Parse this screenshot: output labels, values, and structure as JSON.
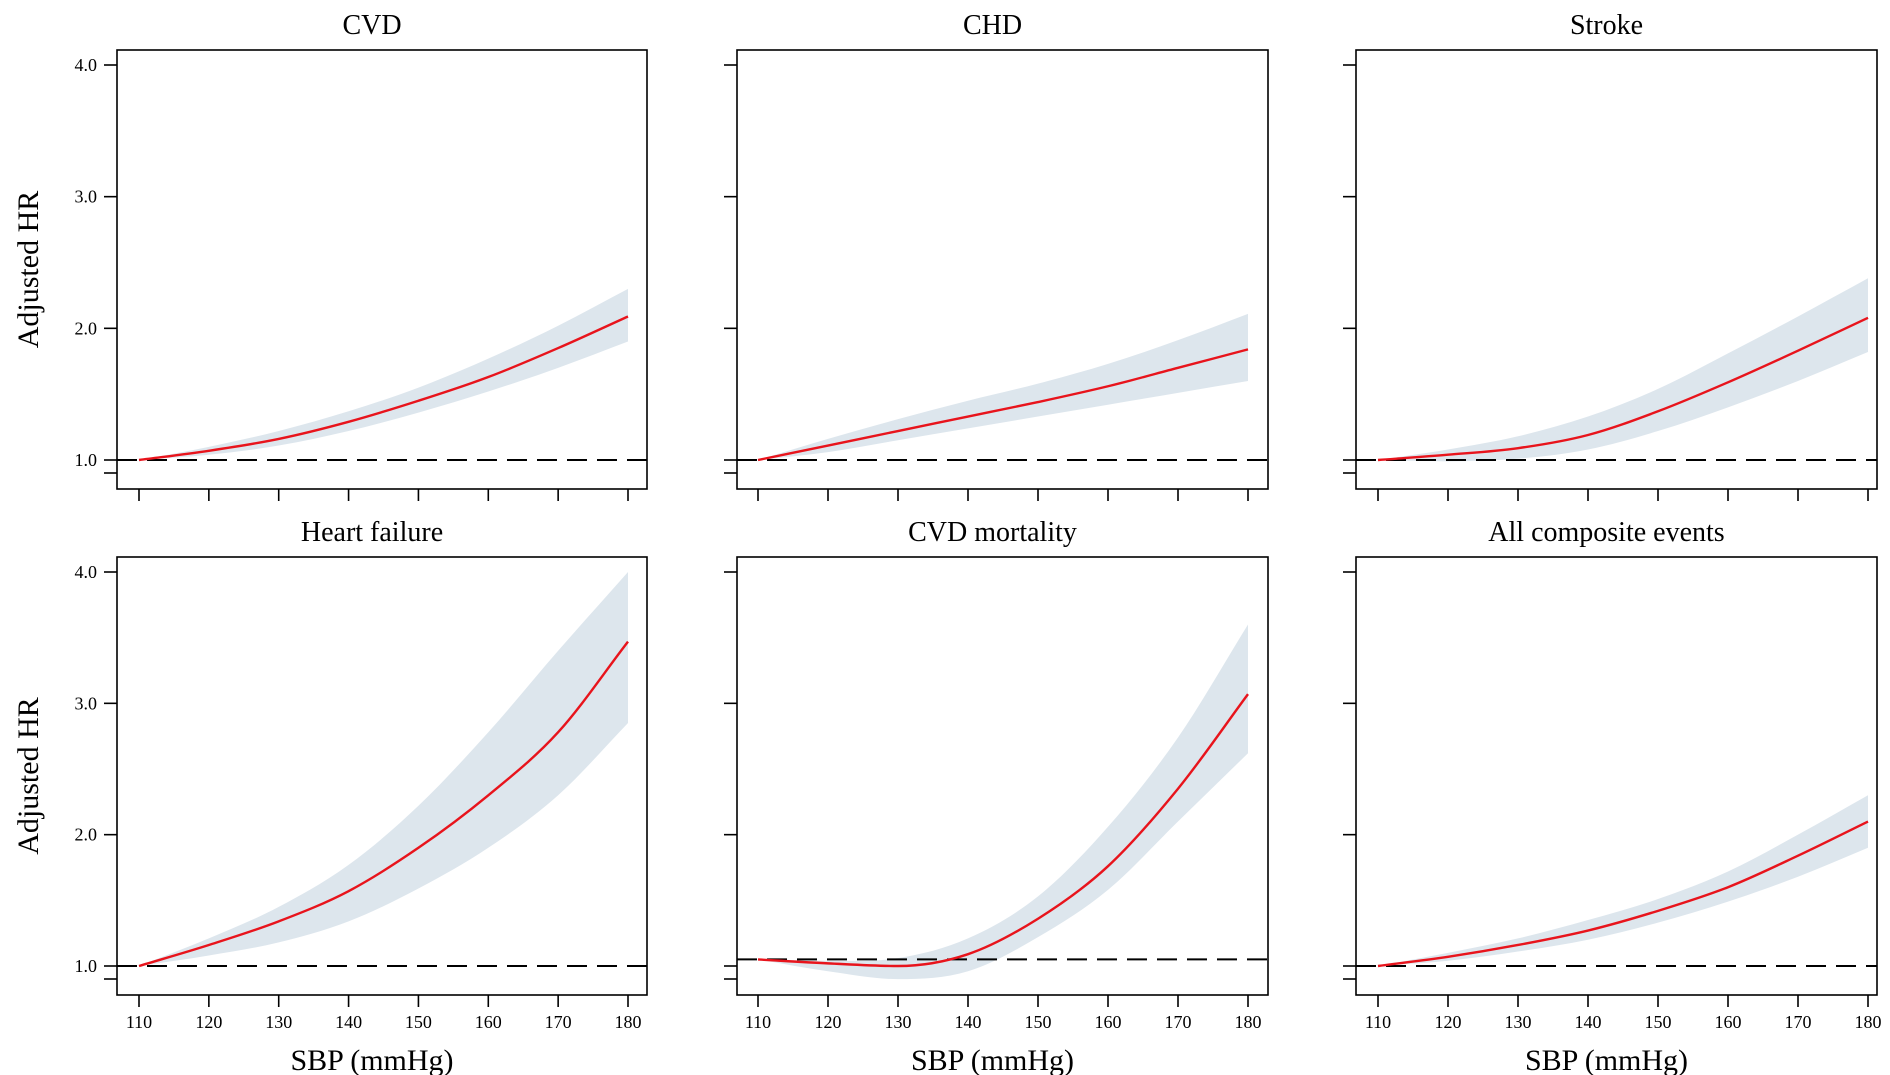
{
  "colors": {
    "curve": "#e8141c",
    "band": "#dde6ed",
    "reference": "#000000"
  },
  "chart_data": [
    {
      "type": "line",
      "title": "CVD",
      "xlabel": "",
      "ylabel": "Adjusted HR",
      "xlim": [
        110,
        180
      ],
      "ylim": [
        1,
        4
      ],
      "reference_y": 1.0,
      "x_ticks": [
        "110",
        "120",
        "130",
        "140",
        "150",
        "160",
        "170",
        "180"
      ],
      "x_tick_labels_shown": false,
      "y_ticks": [
        "1.0",
        "2.0",
        "3.0",
        "4.0"
      ],
      "y_tick_labels_shown": true,
      "x": [
        110,
        120,
        130,
        140,
        150,
        160,
        170,
        180
      ],
      "series": [
        {
          "values": [
            1.0,
            1.07,
            1.16,
            1.29,
            1.45,
            1.63,
            1.85,
            2.09
          ]
        }
      ],
      "ci_lower": [
        1.0,
        1.04,
        1.11,
        1.22,
        1.36,
        1.52,
        1.7,
        1.9
      ],
      "ci_upper": [
        1.0,
        1.1,
        1.22,
        1.37,
        1.55,
        1.77,
        2.02,
        2.3
      ]
    },
    {
      "type": "line",
      "title": "CHD",
      "xlabel": "",
      "ylabel": "",
      "xlim": [
        110,
        180
      ],
      "ylim": [
        1,
        4
      ],
      "reference_y": 1.0,
      "x_ticks": [
        "110",
        "120",
        "130",
        "140",
        "150",
        "160",
        "170",
        "180"
      ],
      "x_tick_labels_shown": false,
      "y_ticks": [
        "1.0",
        "2.0",
        "3.0",
        "4.0"
      ],
      "y_tick_labels_shown": false,
      "x": [
        110,
        120,
        130,
        140,
        150,
        160,
        170,
        180
      ],
      "series": [
        {
          "values": [
            1.0,
            1.11,
            1.22,
            1.33,
            1.44,
            1.56,
            1.7,
            1.84
          ]
        }
      ],
      "ci_lower": [
        1.0,
        1.06,
        1.15,
        1.24,
        1.33,
        1.42,
        1.51,
        1.6
      ],
      "ci_upper": [
        1.0,
        1.16,
        1.31,
        1.45,
        1.58,
        1.73,
        1.91,
        2.11
      ]
    },
    {
      "type": "line",
      "title": "Stroke",
      "xlabel": "",
      "ylabel": "",
      "xlim": [
        110,
        180
      ],
      "ylim": [
        1,
        4
      ],
      "reference_y": 1.0,
      "x_ticks": [
        "110",
        "120",
        "130",
        "140",
        "150",
        "160",
        "170",
        "180"
      ],
      "x_tick_labels_shown": false,
      "y_ticks": [
        "1.0",
        "2.0",
        "3.0",
        "4.0"
      ],
      "y_tick_labels_shown": false,
      "x": [
        110,
        120,
        130,
        140,
        150,
        160,
        170,
        180
      ],
      "series": [
        {
          "values": [
            1.0,
            1.04,
            1.09,
            1.19,
            1.37,
            1.59,
            1.83,
            2.08
          ]
        }
      ],
      "ci_lower": [
        1.0,
        0.99,
        1.01,
        1.08,
        1.22,
        1.4,
        1.6,
        1.82
      ],
      "ci_upper": [
        1.0,
        1.08,
        1.18,
        1.33,
        1.54,
        1.81,
        2.09,
        2.38
      ]
    },
    {
      "type": "line",
      "title": "Heart failure",
      "xlabel": "SBP (mmHg)",
      "ylabel": "Adjusted HR",
      "xlim": [
        110,
        180
      ],
      "ylim": [
        1,
        4
      ],
      "reference_y": 1.0,
      "x_ticks": [
        "110",
        "120",
        "130",
        "140",
        "150",
        "160",
        "170",
        "180"
      ],
      "x_tick_labels_shown": true,
      "y_ticks": [
        "1.0",
        "2.0",
        "3.0",
        "4.0"
      ],
      "y_tick_labels_shown": true,
      "x": [
        110,
        120,
        130,
        140,
        150,
        160,
        170,
        180
      ],
      "series": [
        {
          "values": [
            1.0,
            1.16,
            1.34,
            1.57,
            1.9,
            2.3,
            2.78,
            3.47
          ]
        }
      ],
      "ci_lower": [
        1.0,
        1.08,
        1.18,
        1.34,
        1.59,
        1.9,
        2.3,
        2.85
      ],
      "ci_upper": [
        1.0,
        1.21,
        1.45,
        1.77,
        2.22,
        2.78,
        3.4,
        4.0
      ]
    },
    {
      "type": "line",
      "title": "CVD mortality",
      "xlabel": "SBP (mmHg)",
      "ylabel": "",
      "xlim": [
        110,
        180
      ],
      "ylim": [
        1,
        4
      ],
      "reference_y": 1.05,
      "x_ticks": [
        "110",
        "120",
        "130",
        "140",
        "150",
        "160",
        "170",
        "180"
      ],
      "x_tick_labels_shown": true,
      "y_ticks": [
        "1.0",
        "2.0",
        "3.0",
        "4.0"
      ],
      "y_tick_labels_shown": false,
      "x": [
        110,
        120,
        130,
        140,
        150,
        160,
        170,
        180
      ],
      "series": [
        {
          "values": [
            1.05,
            1.02,
            1.0,
            1.09,
            1.36,
            1.76,
            2.35,
            3.07
          ]
        }
      ],
      "ci_lower": [
        1.05,
        0.96,
        0.9,
        0.96,
        1.22,
        1.58,
        2.1,
        2.62
      ],
      "ci_upper": [
        1.05,
        1.04,
        1.06,
        1.21,
        1.53,
        2.06,
        2.74,
        3.6
      ]
    },
    {
      "type": "line",
      "title": "All composite events",
      "xlabel": "SBP (mmHg)",
      "ylabel": "",
      "xlim": [
        110,
        180
      ],
      "ylim": [
        1,
        4
      ],
      "reference_y": 1.0,
      "x_ticks": [
        "110",
        "120",
        "130",
        "140",
        "150",
        "160",
        "170",
        "180"
      ],
      "x_tick_labels_shown": true,
      "y_ticks": [
        "1.0",
        "2.0",
        "3.0",
        "4.0"
      ],
      "y_tick_labels_shown": false,
      "x": [
        110,
        120,
        130,
        140,
        150,
        160,
        170,
        180
      ],
      "series": [
        {
          "values": [
            1.0,
            1.07,
            1.16,
            1.27,
            1.42,
            1.6,
            1.84,
            2.1
          ]
        }
      ],
      "ci_lower": [
        1.0,
        1.04,
        1.11,
        1.2,
        1.33,
        1.49,
        1.68,
        1.9
      ],
      "ci_upper": [
        1.0,
        1.1,
        1.21,
        1.35,
        1.51,
        1.72,
        2.0,
        2.3
      ]
    }
  ]
}
